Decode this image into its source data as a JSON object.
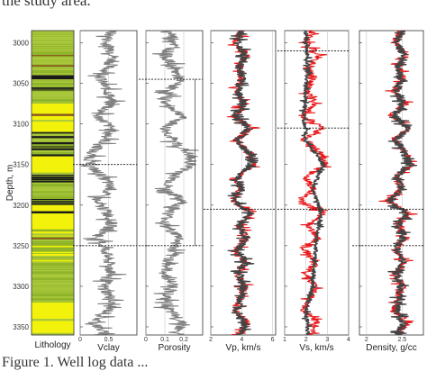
{
  "caption_top": "the study area.",
  "caption_bottom": "Figure 1. Well log data ...",
  "colors": {
    "litho_green": "#8fb42a",
    "litho_lightgreen": "#aac83c",
    "litho_yellow": "#f2f20a",
    "litho_black": "#1a1a1a",
    "litho_brown": "#8a5a1e",
    "gray_curve": "#7f7f7f",
    "red_curve": "#e8171a",
    "dark_curve": "#444444"
  },
  "chart_data": {
    "type": "line",
    "shared_y": {
      "label": "Depth, m",
      "ticks": [
        "3000",
        "3050",
        "3100",
        "3150",
        "3200",
        "3250",
        "3300",
        "3350"
      ],
      "range": [
        2985,
        3360
      ],
      "inverted": true
    },
    "tracks": [
      {
        "id": "lithology",
        "xlabel": "Lithology",
        "type": "lithology_column",
        "intervals": [
          [
            2985,
            3035,
            "green"
          ],
          [
            3035,
            3055,
            "green+black"
          ],
          [
            3055,
            3075,
            "green+black"
          ],
          [
            3075,
            3110,
            "yellow+green"
          ],
          [
            3110,
            3140,
            "green+black"
          ],
          [
            3140,
            3160,
            "yellow"
          ],
          [
            3160,
            3200,
            "green+black"
          ],
          [
            3200,
            3230,
            "yellow+black"
          ],
          [
            3230,
            3270,
            "green+yellow"
          ],
          [
            3270,
            3320,
            "green"
          ],
          [
            3320,
            3360,
            "yellow+green"
          ]
        ]
      },
      {
        "id": "vclay",
        "xlabel": "Vclay",
        "xticks": [
          "0",
          "0.5"
        ],
        "xlim": [
          0,
          1
        ],
        "series": [
          {
            "color": "#7f7f7f",
            "depth": [
              2985,
              3000,
              3015,
              3030,
              3045,
              3060,
              3075,
              3090,
              3105,
              3120,
              3135,
              3150,
              3165,
              3180,
              3195,
              3210,
              3225,
              3240,
              3255,
              3270,
              3285,
              3300,
              3315,
              3330,
              3345,
              3360
            ],
            "values": [
              0.55,
              0.45,
              0.6,
              0.5,
              0.35,
              0.5,
              0.55,
              0.3,
              0.55,
              0.45,
              0.2,
              0.15,
              0.4,
              0.55,
              0.25,
              0.5,
              0.55,
              0.3,
              0.45,
              0.5,
              0.55,
              0.4,
              0.55,
              0.5,
              0.25,
              0.45
            ]
          }
        ]
      },
      {
        "id": "porosity",
        "xlabel": "Porosity",
        "xticks": [
          "0",
          "0.1",
          "0.2"
        ],
        "xlim": [
          0,
          0.3
        ],
        "series": [
          {
            "color": "#7f7f7f",
            "depth": [
              2985,
              3000,
              3015,
              3030,
              3045,
              3060,
              3075,
              3090,
              3105,
              3120,
              3135,
              3150,
              3165,
              3180,
              3195,
              3210,
              3225,
              3240,
              3255,
              3270,
              3285,
              3300,
              3315,
              3330,
              3345,
              3360
            ],
            "values": [
              0.12,
              0.16,
              0.1,
              0.14,
              0.18,
              0.12,
              0.1,
              0.2,
              0.1,
              0.14,
              0.22,
              0.24,
              0.15,
              0.1,
              0.2,
              0.12,
              0.1,
              0.18,
              0.14,
              0.12,
              0.1,
              0.15,
              0.1,
              0.12,
              0.2,
              0.14
            ]
          }
        ]
      },
      {
        "id": "vp",
        "xlabel": "Vp, km/s",
        "xticks": [
          "2",
          "4",
          "6"
        ],
        "xlim": [
          2,
          6.2
        ],
        "series": [
          {
            "color": "#e8171a",
            "depth": [
              2985,
              3000,
              3015,
              3030,
              3045,
              3060,
              3075,
              3090,
              3105,
              3120,
              3135,
              3150,
              3165,
              3180,
              3195,
              3210,
              3225,
              3240,
              3255,
              3270,
              3285,
              3300,
              3315,
              3330,
              3345,
              3360
            ],
            "values": [
              4.0,
              3.6,
              4.3,
              3.8,
              4.0,
              3.7,
              4.2,
              3.5,
              4.6,
              3.6,
              4.5,
              4.8,
              3.7,
              4.0,
              3.4,
              4.7,
              3.8,
              4.4,
              3.6,
              4.3,
              3.7,
              4.2,
              3.9,
              3.6,
              4.4,
              3.8
            ]
          },
          {
            "color": "#444444",
            "depth": [
              2985,
              3000,
              3015,
              3030,
              3045,
              3060,
              3075,
              3090,
              3105,
              3120,
              3135,
              3150,
              3165,
              3180,
              3195,
              3210,
              3225,
              3240,
              3255,
              3270,
              3285,
              3300,
              3315,
              3330,
              3345,
              3360
            ],
            "values": [
              4.0,
              3.7,
              4.2,
              3.8,
              4.0,
              3.8,
              4.1,
              3.6,
              4.5,
              3.7,
              4.4,
              4.6,
              3.8,
              4.0,
              3.5,
              4.6,
              3.8,
              4.3,
              3.7,
              4.2,
              3.8,
              4.1,
              3.9,
              3.7,
              4.3,
              3.8
            ]
          }
        ]
      },
      {
        "id": "vs",
        "xlabel": "Vs, km/s",
        "xticks": [
          "1",
          "2",
          "3",
          "4"
        ],
        "xlim": [
          1,
          4
        ],
        "series": [
          {
            "color": "#e8171a",
            "depth": [
              2985,
              3000,
              3015,
              3030,
              3045,
              3060,
              3075,
              3090,
              3105,
              3120,
              3135,
              3150,
              3165,
              3180,
              3195,
              3210,
              3225,
              3240,
              3255,
              3270,
              3285,
              3300,
              3315,
              3330,
              3345,
              3360
            ],
            "values": [
              2.3,
              2.0,
              2.6,
              2.1,
              2.3,
              2.0,
              2.5,
              1.8,
              2.8,
              1.9,
              2.7,
              2.9,
              2.0,
              2.3,
              1.7,
              2.8,
              2.1,
              2.6,
              1.9,
              2.5,
              2.0,
              2.4,
              2.2,
              1.9,
              2.6,
              2.1
            ]
          },
          {
            "color": "#444444",
            "depth": [
              3000,
              3030,
              3060,
              3090,
              3120,
              3150,
              3180,
              3210,
              3240,
              3270,
              3300,
              3330,
              3360
            ],
            "values": [
              2.0,
              2.1,
              2.0,
              1.9,
              2.0,
              2.8,
              2.3,
              2.7,
              2.5,
              2.4,
              2.3,
              2.0,
              2.1
            ]
          }
        ]
      },
      {
        "id": "density",
        "xlabel": "Density, g/cc",
        "xticks": [
          "2",
          "2.5"
        ],
        "xlim": [
          1.9,
          2.8
        ],
        "series": [
          {
            "color": "#e8171a",
            "depth": [
              2985,
              3000,
              3015,
              3030,
              3045,
              3060,
              3075,
              3090,
              3105,
              3120,
              3135,
              3150,
              3165,
              3180,
              3195,
              3210,
              3225,
              3240,
              3255,
              3270,
              3285,
              3300,
              3315,
              3330,
              3345,
              3360
            ],
            "values": [
              2.5,
              2.4,
              2.55,
              2.45,
              2.5,
              2.4,
              2.55,
              2.35,
              2.6,
              2.4,
              2.55,
              2.65,
              2.4,
              2.5,
              2.3,
              2.6,
              2.45,
              2.55,
              2.4,
              2.55,
              2.4,
              2.5,
              2.45,
              2.4,
              2.55,
              2.45
            ]
          },
          {
            "color": "#444444",
            "depth": [
              2985,
              3000,
              3015,
              3030,
              3045,
              3060,
              3075,
              3090,
              3105,
              3120,
              3135,
              3150,
              3165,
              3180,
              3195,
              3210,
              3225,
              3240,
              3255,
              3270,
              3285,
              3300,
              3315,
              3330,
              3345,
              3360
            ],
            "values": [
              2.5,
              2.42,
              2.52,
              2.45,
              2.48,
              2.42,
              2.52,
              2.38,
              2.58,
              2.42,
              2.52,
              2.6,
              2.42,
              2.5,
              2.33,
              2.58,
              2.45,
              2.52,
              2.42,
              2.52,
              2.42,
              2.48,
              2.45,
              2.42,
              2.52,
              2.45
            ]
          }
        ]
      }
    ],
    "dashed_markers": [
      {
        "track": "vclay",
        "depths": [
          3150,
          3250
        ]
      },
      {
        "track": "porosity",
        "depths": [
          3045,
          3250
        ]
      },
      {
        "track": "vp",
        "depths": [
          3205
        ]
      },
      {
        "track": "vs",
        "depths": [
          3010,
          3105,
          3205
        ]
      },
      {
        "track": "density",
        "depths": [
          3205,
          3250
        ]
      }
    ]
  }
}
